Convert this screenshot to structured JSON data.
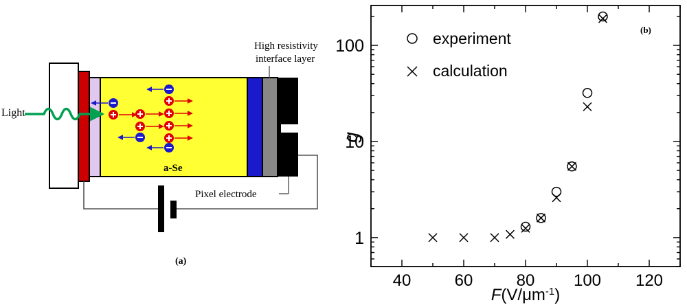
{
  "panel_a": {
    "label": "(a)",
    "light_label": "Light",
    "material_label": "a-Se",
    "interface_label_line1": "High resistivity",
    "interface_label_line2": "interface layer",
    "pixel_label": "Pixel electrode",
    "colors": {
      "aSe": "#ffff33",
      "electrode_red": "#cc0000",
      "lavender": "#e0c8ee",
      "blue_layer": "#1a1acc",
      "interface_gray": "#888888",
      "pixel_black": "#000000",
      "light_wave": "#00a050",
      "hole": "#e00000",
      "electron": "#1a1acc"
    }
  },
  "chart_data": {
    "type": "scatter",
    "panel_label": "(b)",
    "xlabel_main": "F",
    "xlabel_unit": "(V/μm",
    "xlabel_exp": "-1",
    "xlabel_close": ")",
    "ylabel": "g",
    "xlim": [
      30,
      130
    ],
    "ylim": [
      0.5,
      260
    ],
    "y_scale": "log",
    "x_ticks": [
      40,
      60,
      80,
      100,
      120
    ],
    "y_ticks": [
      {
        "value": 1,
        "label": "1"
      },
      {
        "value": 10,
        "label": "10"
      },
      {
        "value": 100,
        "label": "100"
      }
    ],
    "legend_position": "top-left",
    "series": [
      {
        "name": "experiment",
        "marker": "circle",
        "points": [
          [
            80,
            1.3
          ],
          [
            85,
            1.6
          ],
          [
            90,
            3.0
          ],
          [
            95,
            5.5
          ],
          [
            100,
            32
          ],
          [
            105,
            200
          ]
        ]
      },
      {
        "name": "calculation",
        "marker": "cross",
        "points": [
          [
            50,
            1.0
          ],
          [
            60,
            1.0
          ],
          [
            70,
            1.0
          ],
          [
            75,
            1.08
          ],
          [
            80,
            1.25
          ],
          [
            85,
            1.6
          ],
          [
            90,
            2.6
          ],
          [
            95,
            5.5
          ],
          [
            100,
            23
          ],
          [
            105,
            190
          ]
        ]
      }
    ]
  }
}
